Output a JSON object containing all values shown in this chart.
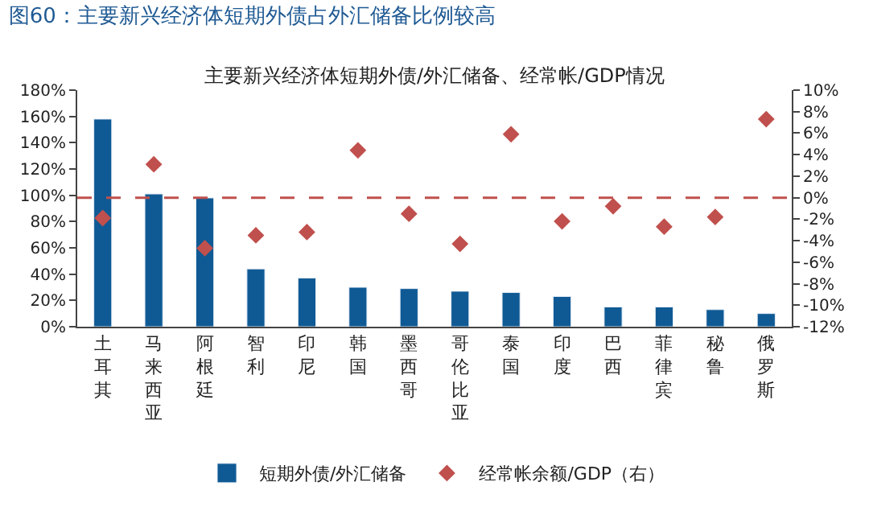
{
  "chart_data": {
    "type": "bar",
    "title": "图60：主要新兴经济体短期外债占外汇储备比例较高",
    "subtitle": "主要新兴经济体短期外债/外汇储备、经常帐/GDP情况",
    "categories": [
      "土耳其",
      "马来西亚",
      "阿根廷",
      "智利",
      "印尼",
      "韩国",
      "墨西哥",
      "哥伦比亚",
      "泰国",
      "印度",
      "巴西",
      "菲律宾",
      "秘鲁",
      "俄罗斯"
    ],
    "series": [
      {
        "name": "短期外债/外汇储备",
        "color": "#0f5a94",
        "values": [
          158,
          101,
          98,
          44,
          37,
          30,
          29,
          27,
          26,
          23,
          15,
          15,
          13,
          10
        ]
      },
      {
        "name": "经常帐余额/GDP（右）",
        "type": "scatter",
        "axis": "y2",
        "marker": "diamond",
        "color": "#c0504d",
        "values": [
          -1.9,
          3.1,
          -4.7,
          -3.5,
          -3.2,
          4.4,
          -1.5,
          -4.3,
          5.9,
          -2.2,
          -0.8,
          -2.7,
          -1.8,
          7.3
        ]
      }
    ],
    "ylim": [
      0,
      180
    ],
    "yticks": [
      {
        "value": 0,
        "label": "0%"
      },
      {
        "value": 20,
        "label": "20%"
      },
      {
        "value": 40,
        "label": "40%"
      },
      {
        "value": 60,
        "label": "60%"
      },
      {
        "value": 80,
        "label": "80%"
      },
      {
        "value": 100,
        "label": "100%"
      },
      {
        "value": 120,
        "label": "120%"
      },
      {
        "value": 140,
        "label": "140%"
      },
      {
        "value": 160,
        "label": "160%"
      },
      {
        "value": 180,
        "label": "180%"
      }
    ],
    "y2lim": [
      -12,
      10
    ],
    "y2ticks": [
      {
        "value": -12,
        "label": "-12%"
      },
      {
        "value": -10,
        "label": "-10%"
      },
      {
        "value": -8,
        "label": "-8%"
      },
      {
        "value": -6,
        "label": "-6%"
      },
      {
        "value": -4,
        "label": "-4%"
      },
      {
        "value": -2,
        "label": "-2%"
      },
      {
        "value": 0,
        "label": "0%"
      },
      {
        "value": 2,
        "label": "2%"
      },
      {
        "value": 4,
        "label": "4%"
      },
      {
        "value": 6,
        "label": "6%"
      },
      {
        "value": 8,
        "label": "8%"
      },
      {
        "value": 10,
        "label": "10%"
      }
    ],
    "ref_lines": [
      {
        "axis": "y2",
        "value": 0,
        "color": "#c0504d",
        "line_style": "dashed"
      }
    ],
    "legend": "bottom"
  }
}
